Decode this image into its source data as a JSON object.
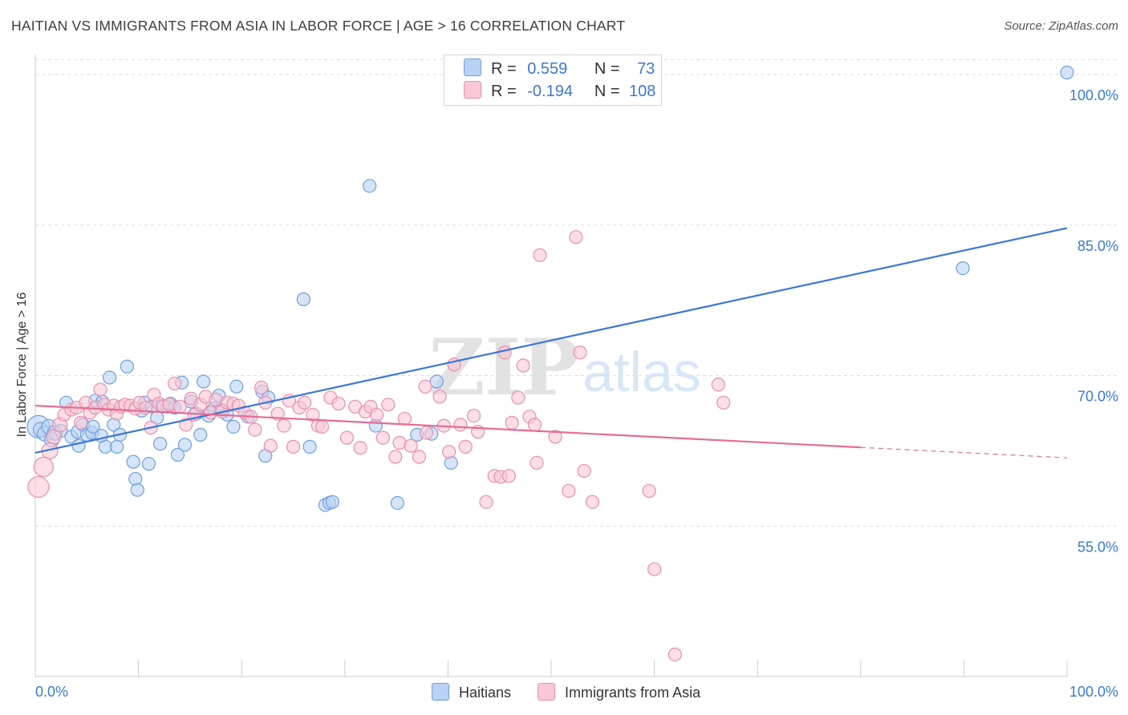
{
  "title": "HAITIAN VS IMMIGRANTS FROM ASIA IN LABOR FORCE | AGE > 16 CORRELATION CHART",
  "source": "Source: ZipAtlas.com",
  "watermark": {
    "zip": "ZIP",
    "atlas": "atlas"
  },
  "colors": {
    "blue_fill": "#b9d2f3",
    "blue_stroke": "#6f9fdf",
    "blue_line": "#3b78d6",
    "pink_fill": "#f8c8d6",
    "pink_stroke": "#e890ab",
    "pink_line": "#e56b95",
    "axis_label": "#3b78d6",
    "grid": "#dddddd"
  },
  "legend": {
    "rows": [
      {
        "r_label": "R =",
        "r_value": "0.559",
        "n_label": "N =",
        "n_value": "73"
      },
      {
        "r_label": "R =",
        "r_value": "-0.194",
        "n_label": "N =",
        "n_value": "108"
      }
    ]
  },
  "bottom_legend": [
    "Haitians",
    "Immigrants from Asia"
  ],
  "chart_data": {
    "type": "scatter",
    "title": "HAITIAN VS IMMIGRANTS FROM ASIA IN LABOR FORCE | AGE > 16 CORRELATION CHART",
    "xlabel": "",
    "ylabel": "In Labor Force | Age > 16",
    "xlim": [
      0,
      100
    ],
    "ylim": [
      40,
      102
    ],
    "x_tick_labels": [
      "0.0%",
      "100.0%"
    ],
    "y_ticks": [
      55,
      70,
      85,
      100
    ],
    "y_tick_labels": [
      "55.0%",
      "70.0%",
      "85.0%",
      "100.0%"
    ],
    "series": [
      {
        "name": "Haitians",
        "r": 0.559,
        "n": 73,
        "trend": {
          "x": [
            0,
            100
          ],
          "y": [
            62.3,
            84.7
          ],
          "dashed_from": null
        },
        "points": [
          [
            0.3,
            64.9,
            14
          ],
          [
            0.5,
            64.6,
            9
          ],
          [
            0.9,
            64.2,
            9
          ],
          [
            1.3,
            64.9,
            9
          ],
          [
            1.6,
            63.6,
            9
          ],
          [
            1.9,
            64.3,
            9
          ],
          [
            2.5,
            64.5,
            8
          ],
          [
            3.0,
            67.3,
            8
          ],
          [
            3.5,
            63.9,
            8
          ],
          [
            4.1,
            64.4,
            8
          ],
          [
            4.2,
            63.0,
            8
          ],
          [
            4.6,
            65.1,
            8
          ],
          [
            5.0,
            64.1,
            8
          ],
          [
            5.5,
            64.3,
            8
          ],
          [
            5.6,
            64.9,
            8
          ],
          [
            5.8,
            67.5,
            8
          ],
          [
            6.4,
            64.0,
            8
          ],
          [
            6.5,
            67.4,
            8
          ],
          [
            6.8,
            62.9,
            8
          ],
          [
            7.2,
            69.8,
            8
          ],
          [
            7.6,
            65.1,
            8
          ],
          [
            7.9,
            62.9,
            8
          ],
          [
            8.2,
            64.1,
            8
          ],
          [
            8.9,
            70.9,
            8
          ],
          [
            9.5,
            61.4,
            8
          ],
          [
            9.7,
            59.7,
            8
          ],
          [
            9.9,
            58.6,
            8
          ],
          [
            10.3,
            66.5,
            8
          ],
          [
            10.6,
            67.3,
            8
          ],
          [
            11.0,
            61.2,
            8
          ],
          [
            11.3,
            66.9,
            8
          ],
          [
            11.8,
            65.8,
            8
          ],
          [
            12.1,
            63.2,
            8
          ],
          [
            12.3,
            67.0,
            8
          ],
          [
            12.8,
            66.9,
            8
          ],
          [
            13.1,
            67.2,
            8
          ],
          [
            13.5,
            66.8,
            8
          ],
          [
            13.8,
            62.1,
            8
          ],
          [
            14.2,
            69.3,
            8
          ],
          [
            14.5,
            63.1,
            8
          ],
          [
            15.1,
            67.4,
            8
          ],
          [
            15.6,
            66.2,
            8
          ],
          [
            16.0,
            64.1,
            8
          ],
          [
            16.3,
            69.4,
            8
          ],
          [
            16.8,
            66.0,
            8
          ],
          [
            17.3,
            66.7,
            8
          ],
          [
            17.8,
            68.0,
            8
          ],
          [
            18.0,
            66.6,
            8
          ],
          [
            18.6,
            66.1,
            8
          ],
          [
            19.2,
            64.9,
            8
          ],
          [
            19.5,
            68.9,
            8
          ],
          [
            20.6,
            65.9,
            8
          ],
          [
            22.0,
            68.4,
            8
          ],
          [
            22.3,
            62.0,
            8
          ],
          [
            22.6,
            67.8,
            8
          ],
          [
            26.0,
            77.6,
            8
          ],
          [
            26.6,
            62.9,
            8
          ],
          [
            28.1,
            57.1,
            8
          ],
          [
            28.5,
            57.3,
            8
          ],
          [
            28.8,
            57.4,
            8
          ],
          [
            32.4,
            88.9,
            8
          ],
          [
            33.0,
            65.0,
            8
          ],
          [
            35.1,
            57.3,
            8
          ],
          [
            37.0,
            64.1,
            8
          ],
          [
            38.4,
            64.2,
            8
          ],
          [
            38.9,
            69.4,
            8
          ],
          [
            40.3,
            61.3,
            8
          ],
          [
            89.9,
            80.7,
            8
          ],
          [
            100.0,
            100.2,
            8
          ]
        ]
      },
      {
        "name": "Immigrants from Asia",
        "r": -0.194,
        "n": 108,
        "trend": {
          "x": [
            0,
            100
          ],
          "y": [
            67.0,
            61.8
          ],
          "dashed_from": 80
        },
        "points": [
          [
            0.3,
            58.9,
            13
          ],
          [
            0.8,
            60.9,
            12
          ],
          [
            1.4,
            62.5,
            10
          ],
          [
            1.8,
            63.9,
            9
          ],
          [
            2.4,
            65.1,
            9
          ],
          [
            2.8,
            66.1,
            8
          ],
          [
            3.5,
            66.6,
            8
          ],
          [
            4.0,
            66.8,
            8
          ],
          [
            4.4,
            65.3,
            8
          ],
          [
            4.9,
            67.3,
            8
          ],
          [
            5.3,
            66.3,
            8
          ],
          [
            5.8,
            66.8,
            8
          ],
          [
            6.3,
            68.6,
            8
          ],
          [
            6.7,
            67.1,
            8
          ],
          [
            7.1,
            66.6,
            8
          ],
          [
            7.6,
            67.0,
            8
          ],
          [
            7.9,
            66.2,
            8
          ],
          [
            8.3,
            66.9,
            8
          ],
          [
            8.7,
            67.1,
            8
          ],
          [
            9.2,
            67.0,
            8
          ],
          [
            9.7,
            66.7,
            8
          ],
          [
            10.1,
            67.3,
            8
          ],
          [
            10.7,
            66.8,
            8
          ],
          [
            11.2,
            64.8,
            8
          ],
          [
            11.5,
            68.1,
            8
          ],
          [
            12.0,
            67.2,
            8
          ],
          [
            12.4,
            66.9,
            8
          ],
          [
            13.0,
            67.1,
            8
          ],
          [
            13.5,
            69.2,
            8
          ],
          [
            14.0,
            66.9,
            8
          ],
          [
            14.6,
            65.1,
            8
          ],
          [
            15.1,
            67.7,
            8
          ],
          [
            15.4,
            66.1,
            8
          ],
          [
            16.0,
            67.1,
            8
          ],
          [
            16.5,
            67.9,
            8
          ],
          [
            17.0,
            66.3,
            8
          ],
          [
            17.5,
            67.6,
            8
          ],
          [
            18.1,
            66.4,
            8
          ],
          [
            18.6,
            67.3,
            8
          ],
          [
            19.2,
            67.2,
            8
          ],
          [
            19.7,
            67.0,
            8
          ],
          [
            20.3,
            66.3,
            8
          ],
          [
            20.9,
            65.9,
            8
          ],
          [
            21.3,
            64.6,
            8
          ],
          [
            21.9,
            68.8,
            8
          ],
          [
            22.3,
            67.3,
            8
          ],
          [
            22.8,
            63.0,
            8
          ],
          [
            23.5,
            66.2,
            8
          ],
          [
            24.1,
            65.0,
            8
          ],
          [
            24.6,
            67.5,
            8
          ],
          [
            25.0,
            62.9,
            8
          ],
          [
            25.6,
            66.8,
            8
          ],
          [
            26.1,
            67.3,
            8
          ],
          [
            26.9,
            66.1,
            8
          ],
          [
            27.4,
            65.0,
            8
          ],
          [
            27.8,
            64.9,
            8
          ],
          [
            28.6,
            67.8,
            8
          ],
          [
            29.4,
            67.2,
            8
          ],
          [
            30.2,
            63.8,
            8
          ],
          [
            31.0,
            66.9,
            8
          ],
          [
            31.5,
            62.8,
            8
          ],
          [
            32.0,
            66.4,
            8
          ],
          [
            32.5,
            66.9,
            8
          ],
          [
            33.1,
            66.1,
            8
          ],
          [
            33.7,
            63.8,
            8
          ],
          [
            34.2,
            67.1,
            8
          ],
          [
            34.9,
            61.9,
            8
          ],
          [
            35.3,
            63.3,
            8
          ],
          [
            35.8,
            65.7,
            8
          ],
          [
            36.4,
            63.0,
            8
          ],
          [
            37.2,
            61.9,
            8
          ],
          [
            37.9,
            64.3,
            8
          ],
          [
            37.8,
            68.9,
            8
          ],
          [
            39.2,
            67.9,
            8
          ],
          [
            39.6,
            65.0,
            8
          ],
          [
            40.1,
            62.4,
            8
          ],
          [
            40.6,
            71.1,
            8
          ],
          [
            41.2,
            65.1,
            8
          ],
          [
            41.7,
            62.9,
            8
          ],
          [
            42.5,
            66.0,
            8
          ],
          [
            42.9,
            64.4,
            8
          ],
          [
            43.7,
            57.4,
            8
          ],
          [
            44.5,
            60.0,
            8
          ],
          [
            45.1,
            59.9,
            8
          ],
          [
            45.5,
            72.3,
            8
          ],
          [
            45.9,
            60.0,
            8
          ],
          [
            46.2,
            65.3,
            8
          ],
          [
            46.8,
            67.8,
            8
          ],
          [
            47.3,
            71.0,
            8
          ],
          [
            47.9,
            65.9,
            8
          ],
          [
            48.4,
            65.1,
            8
          ],
          [
            48.6,
            61.3,
            8
          ],
          [
            48.9,
            82.0,
            8
          ],
          [
            50.4,
            63.9,
            8
          ],
          [
            51.7,
            58.5,
            8
          ],
          [
            52.4,
            83.8,
            8
          ],
          [
            52.8,
            72.3,
            8
          ],
          [
            53.2,
            60.5,
            8
          ],
          [
            54.0,
            57.4,
            8
          ],
          [
            59.5,
            58.5,
            8
          ],
          [
            60.0,
            50.7,
            8
          ],
          [
            62.0,
            42.2,
            8
          ],
          [
            66.2,
            69.1,
            8
          ],
          [
            66.7,
            67.3,
            8
          ]
        ]
      }
    ]
  }
}
